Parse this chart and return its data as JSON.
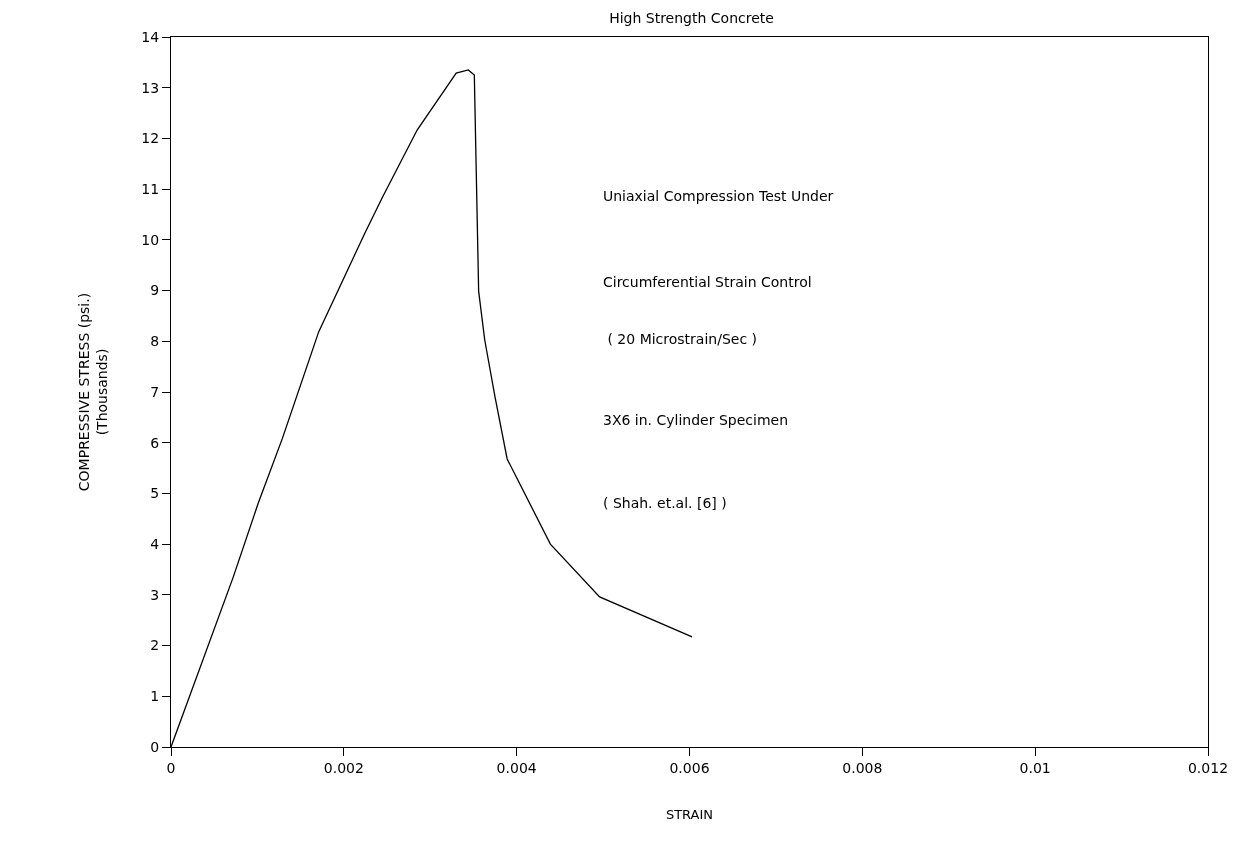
{
  "chart_data": {
    "type": "line",
    "title": "High Strength Concrete",
    "xlabel": "STRAIN",
    "ylabel": "COMPRESSIVE STRESS (psi.)\n(Thousands)",
    "x": [
      0,
      0.00072,
      0.00101,
      0.00129,
      0.00171,
      0.00224,
      0.00245,
      0.00285,
      0.0033,
      0.00344,
      0.00351,
      0.00356,
      0.00363,
      0.00375,
      0.00389,
      0.00439,
      0.00496,
      0.00603
    ],
    "series": [
      {
        "color": "#000000",
        "values": [
          0,
          3.35,
          4.81,
          6.09,
          8.19,
          10.12,
          10.85,
          12.17,
          13.29,
          13.35,
          13.25,
          8.99,
          8.03,
          6.9,
          5.68,
          4.0,
          2.96,
          2.17
        ]
      }
    ],
    "xlim": [
      0,
      0.012
    ],
    "xticks": [
      0,
      0.002,
      0.004,
      0.006,
      0.008,
      0.01,
      0.012
    ],
    "ylim": [
      0,
      14
    ],
    "yticks": [
      0,
      1,
      2,
      3,
      4,
      5,
      6,
      7,
      8,
      9,
      10,
      11,
      12,
      13,
      14
    ],
    "grid": false,
    "marker": "none",
    "line_style": "solid",
    "annotations": [
      "Uniaxial Compression Test Under",
      "Circumferential Strain Control",
      " ( 20 Microstrain/Sec )",
      "3X6 in. Cylinder Specimen",
      "( Shah. et.al. [6] )"
    ]
  }
}
